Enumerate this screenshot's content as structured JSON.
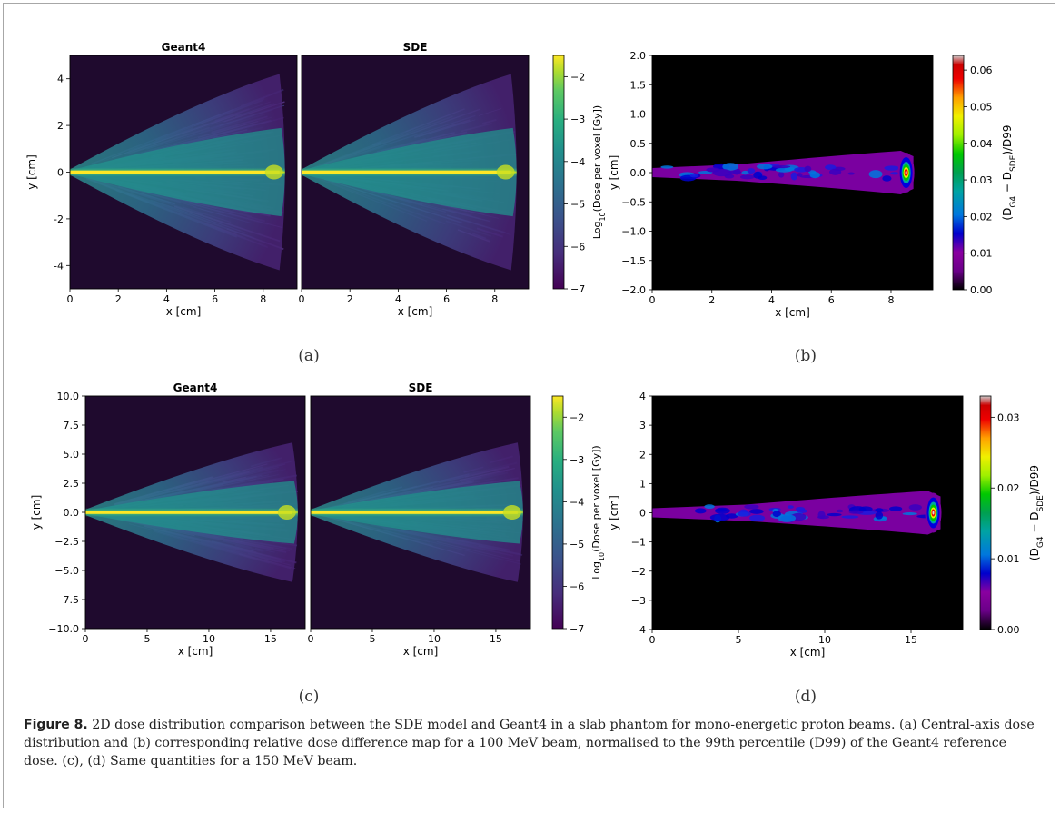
{
  "figure": {
    "label": "Figure 8.",
    "caption": "2D dose distribution comparison between the SDE model and Geant4 in a slab phantom for mono-energetic proton beams. (a) Central-axis dose distribution and (b) corresponding relative dose difference map for a 100 MeV beam, normalised to the 99th percentile (D99) of the Geant4 reference dose. (c), (d) Same quantities for a 150 MeV beam."
  },
  "panels": [
    {
      "id": "a",
      "label": "(a)",
      "maps": [
        {
          "title": "Geant4",
          "xlabel": "x [cm]",
          "ylabel": "y [cm]",
          "xlim": [
            0,
            9.4
          ],
          "ylim": [
            -5,
            5
          ],
          "xticks": [
            0,
            2,
            4,
            6,
            8
          ],
          "yticks": [
            -4,
            -2,
            0,
            2,
            4
          ]
        },
        {
          "title": "SDE",
          "xlabel": "x [cm]",
          "xlim": [
            0,
            9.4
          ],
          "xticks": [
            0,
            2,
            4,
            6,
            8
          ]
        }
      ],
      "colorbar": {
        "label": "Log10(Dose per voxel [Gy])",
        "range": [
          -7,
          -1.5
        ],
        "ticks": [
          "−2",
          "−3",
          "−4",
          "−5",
          "−6",
          "−7"
        ],
        "colormap": "viridis"
      }
    },
    {
      "id": "b",
      "label": "(b)",
      "map": {
        "xlabel": "x [cm]",
        "ylabel": "y [cm]",
        "xlim": [
          0,
          9.4
        ],
        "ylim": [
          -2,
          2
        ],
        "xticks": [
          0,
          2,
          4,
          6,
          8
        ],
        "yticks": [
          "2.0",
          "1.5",
          "1.0",
          "0.5",
          "0.0",
          "−0.5",
          "−1.0",
          "−1.5",
          "−2.0"
        ]
      },
      "colorbar": {
        "label": "(D_G4 − D_SDE)/D99",
        "range": [
          0,
          0.064
        ],
        "ticks": [
          "0.06",
          "0.05",
          "0.04",
          "0.03",
          "0.02",
          "0.01",
          "0.00"
        ],
        "colormap": "nipy_spectral"
      }
    },
    {
      "id": "c",
      "label": "(c)",
      "maps": [
        {
          "title": "Geant4",
          "xlabel": "x [cm]",
          "ylabel": "y [cm]",
          "xlim": [
            0,
            17.8
          ],
          "ylim": [
            -10,
            10
          ],
          "xticks": [
            0,
            5,
            10,
            15
          ],
          "yticks": [
            "10.0",
            "7.5",
            "5.0",
            "2.5",
            "0.0",
            "−2.5",
            "−5.0",
            "−7.5",
            "−10.0"
          ]
        },
        {
          "title": "SDE",
          "xlabel": "x [cm]",
          "xlim": [
            0,
            17.8
          ],
          "xticks": [
            0,
            5,
            10,
            15
          ]
        }
      ],
      "colorbar": {
        "label": "Log10(Dose per voxel [Gy])",
        "range": [
          -7,
          -1.5
        ],
        "ticks": [
          "−2",
          "−3",
          "−4",
          "−5",
          "−6",
          "−7"
        ],
        "colormap": "viridis"
      }
    },
    {
      "id": "d",
      "label": "(d)",
      "map": {
        "xlabel": "x [cm]",
        "ylabel": "y [cm]",
        "xlim": [
          0,
          18
        ],
        "ylim": [
          -4,
          4
        ],
        "xticks": [
          0,
          5,
          10,
          15
        ],
        "yticks": [
          "4",
          "3",
          "2",
          "1",
          "0",
          "−1",
          "−2",
          "−3",
          "−4"
        ]
      },
      "colorbar": {
        "label": "(D_G4 − D_SDE)/D99",
        "range": [
          0,
          0.033
        ],
        "ticks": [
          "0.03",
          "0.02",
          "0.01",
          "0.00"
        ],
        "colormap": "nipy_spectral"
      }
    }
  ]
}
